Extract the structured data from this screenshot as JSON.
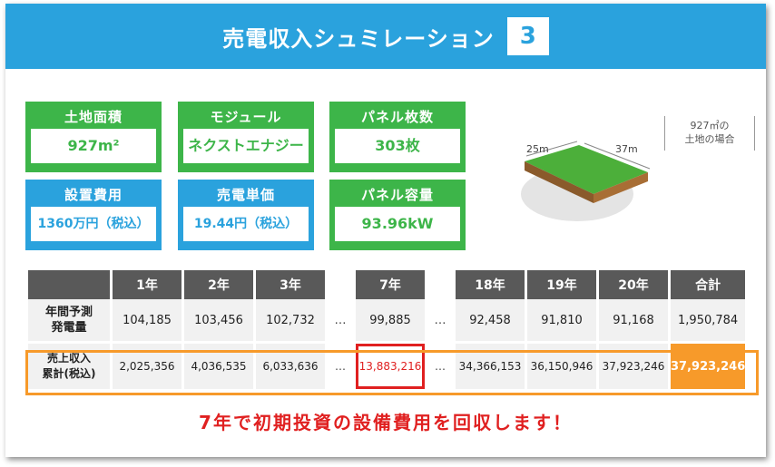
{
  "header": {
    "title": "売電収入シュミレーション",
    "badge": "3"
  },
  "specs": {
    "land_area": {
      "label": "土地面積",
      "value": "927m²"
    },
    "module": {
      "label": "モジュール",
      "value": "ネクストエナジー"
    },
    "panel_count": {
      "label": "パネル枚数",
      "value": "303枚"
    },
    "install_cost": {
      "label": "設置費用",
      "value": "1360万円（税込）"
    },
    "unit_price": {
      "label": "売電単価",
      "value": "19.44円（税込）"
    },
    "panel_capacity": {
      "label": "パネル容量",
      "value": "93.96kW"
    }
  },
  "land": {
    "caption_line1": "927㎡の",
    "caption_line2": "土地の場合",
    "width_label": "25m",
    "length_label": "37m"
  },
  "table": {
    "headers": [
      "1年",
      "2年",
      "3年",
      "7年",
      "18年",
      "19年",
      "20年",
      "合計"
    ],
    "ellipsis": "…",
    "row1": {
      "label_line1": "年間予測",
      "label_line2": "発電量",
      "values": [
        "104,185",
        "103,456",
        "102,732",
        "99,885",
        "92,458",
        "91,810",
        "91,168",
        "1,950,784"
      ]
    },
    "row2": {
      "label_line1": "売上収入",
      "label_line2": "累計(税込)",
      "values": [
        "2,025,356",
        "4,036,535",
        "6,033,636",
        "13,883,216",
        "34,366,153",
        "36,150,946",
        "37,923,246",
        "37,923,246"
      ]
    }
  },
  "message": "7年で初期投資の設備費用を回収します！",
  "colors": {
    "blue": "#2aa2dd",
    "green": "#3db549",
    "orange": "#f79a2a",
    "red": "#e02020",
    "gray": "#595959"
  }
}
